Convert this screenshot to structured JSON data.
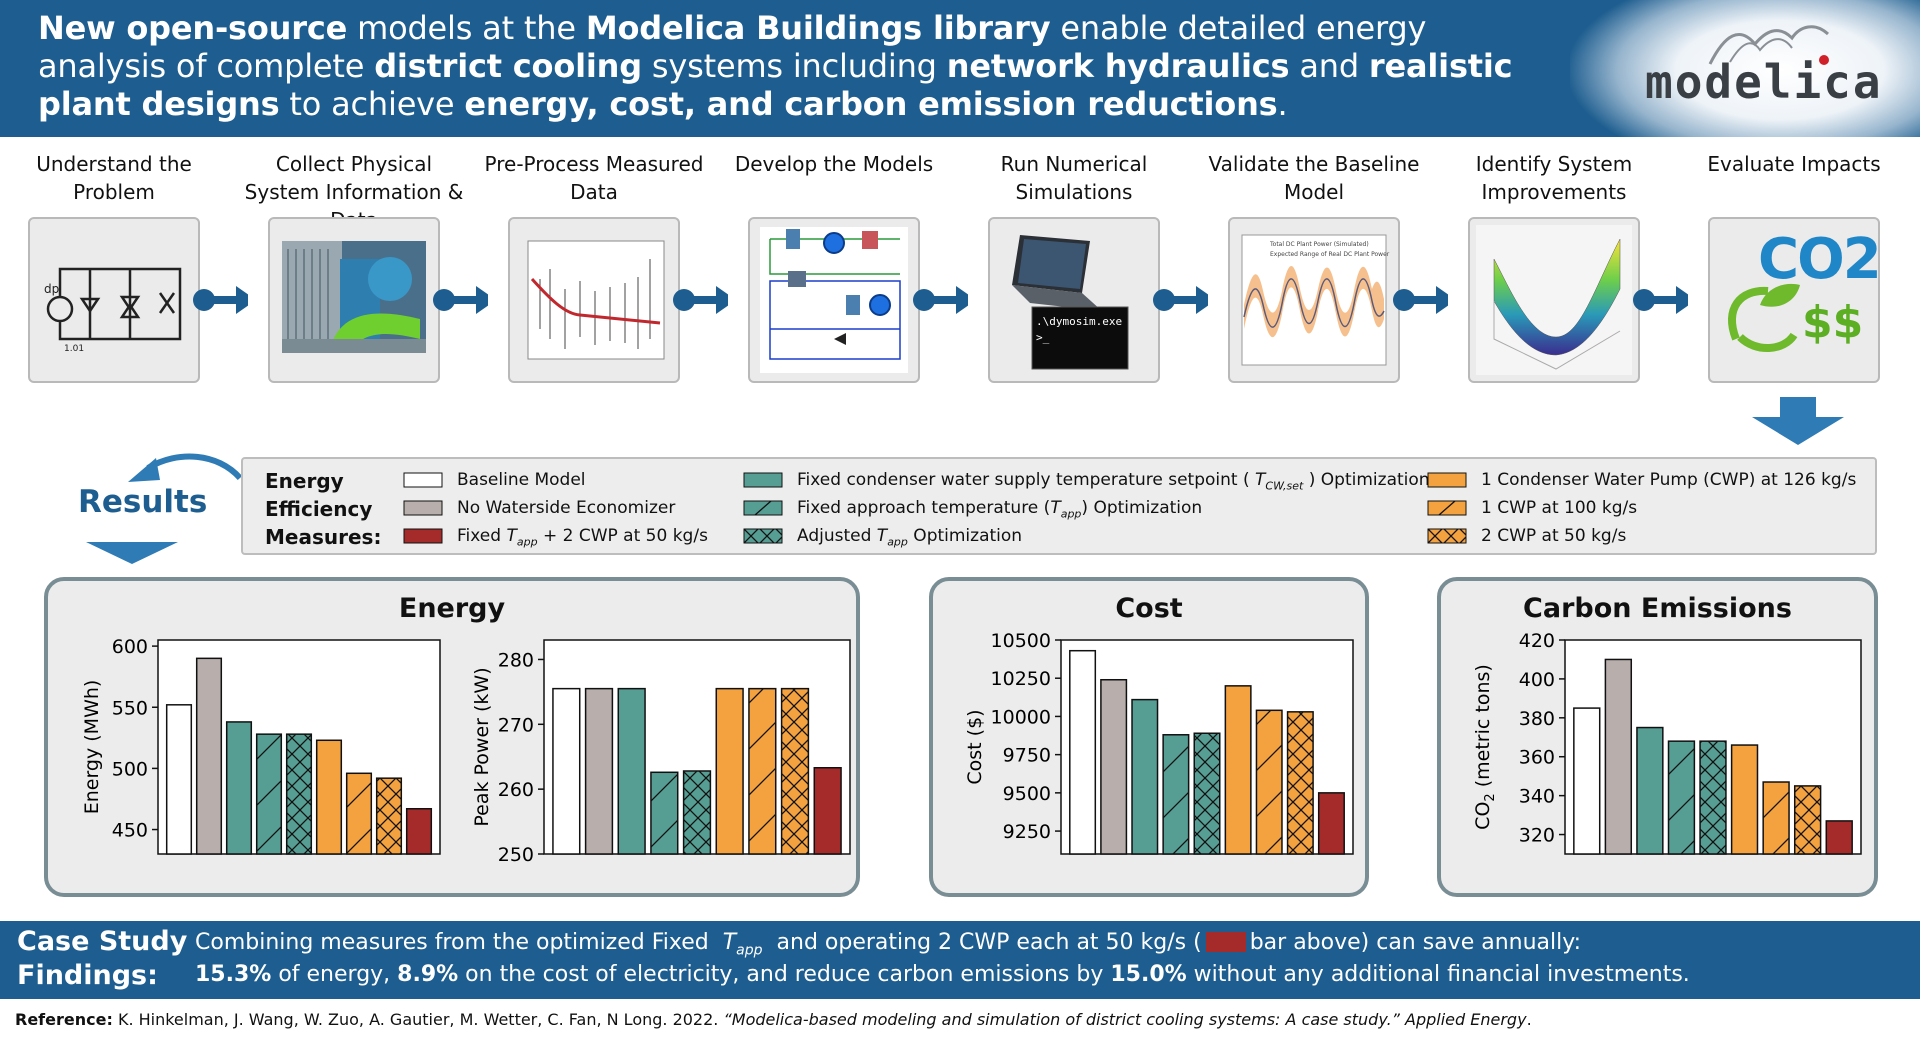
{
  "header": {
    "segments": [
      {
        "text": "New open-source",
        "bold": true
      },
      {
        "text": " models at the ",
        "bold": false
      },
      {
        "text": "Modelica Buildings library",
        "bold": true
      },
      {
        "text": " enable detailed energy analysis of complete ",
        "bold": false
      },
      {
        "text": "district cooling",
        "bold": true
      },
      {
        "text": " systems including ",
        "bold": false
      },
      {
        "text": "network hydraulics",
        "bold": true
      },
      {
        "text": " and ",
        "bold": false
      },
      {
        "text": "realistic plant designs",
        "bold": true
      },
      {
        "text": " to achieve ",
        "bold": false
      },
      {
        "text": "energy, cost, and carbon emission reductions",
        "bold": true
      },
      {
        "text": ".",
        "bold": false
      }
    ],
    "logo_text": "modelica"
  },
  "workflow": {
    "steps": [
      {
        "title": "Understand the Problem",
        "icon": "schematic-sketch-icon"
      },
      {
        "title": "Collect Physical System Information & Data",
        "icon": "plant-photo-icon"
      },
      {
        "title": "Pre-Process Measured Data",
        "icon": "timeseries-plot-icon"
      },
      {
        "title": "Develop the Models",
        "icon": "model-diagram-icon"
      },
      {
        "title": "Run Numerical Simulations",
        "icon": "laptop-terminal-icon",
        "terminal_text": ".\\dymosim.exe"
      },
      {
        "title": "Validate the Baseline Model",
        "icon": "validation-plot-icon",
        "legend1": "Total DC Plant Power (Simulated)",
        "legend2": "Expected Range of Real DC Plant Power"
      },
      {
        "title": "Identify System Improvements",
        "icon": "surface-plot-icon"
      },
      {
        "title": "Evaluate Impacts",
        "icon": "co2-money-icon",
        "co2": "CO2",
        "money": "$$"
      }
    ]
  },
  "results_title": "Results",
  "legend": {
    "heading": [
      "Energy",
      "Efficiency",
      "Measures:"
    ],
    "items": [
      {
        "label": "Baseline Model",
        "color": "#ffffff",
        "hatch": "none"
      },
      {
        "label": "No Waterside Economizer",
        "color": "#b8aeac",
        "hatch": "none"
      },
      {
        "label": "Fixed T_app + 2 CWP at 50 kg/s",
        "color": "#a52b2b",
        "hatch": "none"
      },
      {
        "label": "Fixed condenser water supply temperature setpoint ( T_CW,set ) Optimization",
        "color": "#569e94",
        "hatch": "none"
      },
      {
        "label": "Fixed approach temperature (T_app) Optimization",
        "color": "#569e94",
        "hatch": "slash"
      },
      {
        "label": "Adjusted T_app Optimization",
        "color": "#569e94",
        "hatch": "cross"
      },
      {
        "label": "1 Condenser Water Pump (CWP) at 126 kg/s",
        "color": "#f4a240",
        "hatch": "none"
      },
      {
        "label": "1 CWP at 100 kg/s",
        "color": "#f4a240",
        "hatch": "slash"
      },
      {
        "label": "2 CWP at 50 kg/s",
        "color": "#f4a240",
        "hatch": "cross"
      }
    ]
  },
  "panels": {
    "energy_title": "Energy",
    "cost_title": "Cost",
    "carbon_title": "Carbon Emissions"
  },
  "chart_data": [
    {
      "type": "bar",
      "ylabel": "Energy (MWh)",
      "ylim": [
        430,
        605
      ],
      "yticks": [
        450,
        500,
        550,
        600
      ],
      "categories": [
        "Baseline Model",
        "No Waterside Economizer",
        "Fixed T_CW,set Optimization",
        "Fixed T_app Optimization",
        "Adjusted T_app Optimization",
        "1 CWP at 126 kg/s",
        "1 CWP at 100 kg/s",
        "2 CWP at 50 kg/s",
        "Fixed T_app + 2 CWP at 50 kg/s"
      ],
      "values": [
        552,
        590,
        538,
        528,
        528,
        523,
        496,
        492,
        467
      ]
    },
    {
      "type": "bar",
      "ylabel": "Peak Power (kW)",
      "ylim": [
        250,
        283
      ],
      "yticks": [
        250,
        260,
        270,
        280
      ],
      "categories": [
        "Baseline Model",
        "No Waterside Economizer",
        "Fixed T_CW,set Optimization",
        "Fixed T_app Optimization",
        "Adjusted T_app Optimization",
        "1 CWP at 126 kg/s",
        "1 CWP at 100 kg/s",
        "2 CWP at 50 kg/s",
        "Fixed T_app + 2 CWP at 50 kg/s"
      ],
      "values": [
        275.5,
        275.5,
        275.5,
        262.6,
        262.8,
        275.5,
        275.5,
        275.5,
        263.3
      ]
    },
    {
      "type": "bar",
      "ylabel": "Cost ($)",
      "ylim": [
        9100,
        10500
      ],
      "yticks": [
        9250,
        9500,
        9750,
        10000,
        10250,
        10500
      ],
      "categories": [
        "Baseline Model",
        "No Waterside Economizer",
        "Fixed T_CW,set Optimization",
        "Fixed T_app Optimization",
        "Adjusted T_app Optimization",
        "1 CWP at 126 kg/s",
        "1 CWP at 100 kg/s",
        "2 CWP at 50 kg/s",
        "Fixed T_app + 2 CWP at 50 kg/s"
      ],
      "values": [
        10430,
        10240,
        10110,
        9880,
        9890,
        10200,
        10040,
        10030,
        9500
      ]
    },
    {
      "type": "bar",
      "ylabel": "CO2 (metric tons)",
      "ylim": [
        310,
        420
      ],
      "yticks": [
        320,
        340,
        360,
        380,
        400,
        420
      ],
      "categories": [
        "Baseline Model",
        "No Waterside Economizer",
        "Fixed T_CW,set Optimization",
        "Fixed T_app Optimization",
        "Adjusted T_app Optimization",
        "1 CWP at 126 kg/s",
        "1 CWP at 100 kg/s",
        "2 CWP at 50 kg/s",
        "Fixed T_app + 2 CWP at 50 kg/s"
      ],
      "values": [
        385,
        410,
        375,
        368,
        368,
        366,
        347,
        345,
        327
      ]
    }
  ],
  "findings": {
    "label1": "Case Study",
    "label2": "Findings:",
    "line1_a": "Combining measures from the optimized Fixed",
    "line1_b": "and operating 2 CWP each at 50 kg/s (",
    "line1_c": "bar above)  can save annually:",
    "pct_energy": "15.3%",
    "t_energy": " of energy, ",
    "pct_cost": "8.9%",
    "t_cost": " on the cost of electricity, and reduce carbon emissions by ",
    "pct_carbon": "15.0%",
    "t_end": " without any additional financial investments."
  },
  "reference": {
    "label": "Reference:",
    "authors": " K. Hinkelman, J. Wang, W. Zuo, A. Gautier, M. Wetter, C. Fan, N Long. 2022. ",
    "title": "“Modelica-based modeling and simulation of district cooling systems: A case study.”",
    "journal": " Applied Energy",
    "end": "."
  }
}
